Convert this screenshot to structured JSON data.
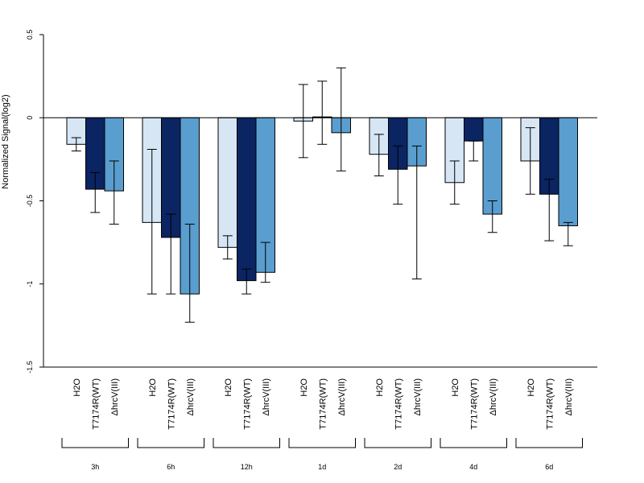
{
  "chart_data": {
    "type": "bar",
    "ylabel": "Normalized Signal(log2)",
    "ylim": [
      -1.5,
      0.5
    ],
    "yticks": [
      0.5,
      0,
      -0.5,
      -1,
      -1.5
    ],
    "ytick_labels": [
      "0.5",
      "0",
      "-0.5",
      "-1",
      "-1.5"
    ],
    "groups": [
      "3h",
      "6h",
      "12h",
      "1d",
      "2d",
      "4d",
      "6d"
    ],
    "series": [
      {
        "name": "H2O",
        "color": "#d6e6f5",
        "values": [
          -0.16,
          -0.63,
          -0.78,
          -0.02,
          -0.22,
          -0.39,
          -0.26
        ],
        "err_low": [
          -0.2,
          -1.06,
          -0.85,
          -0.24,
          -0.35,
          -0.52,
          -0.46
        ],
        "err_high": [
          -0.12,
          -0.19,
          -0.71,
          0.2,
          -0.1,
          -0.26,
          -0.06
        ]
      },
      {
        "name": "T7174R(WT)",
        "color": "#0b2462",
        "values": [
          -0.43,
          -0.72,
          -0.98,
          0.005,
          -0.31,
          -0.14,
          -0.46
        ],
        "err_low": [
          -0.57,
          -1.06,
          -1.06,
          -0.16,
          -0.52,
          -0.26,
          -0.74
        ],
        "err_high": [
          -0.33,
          -0.58,
          -0.91,
          0.22,
          -0.17,
          -0.14,
          -0.37
        ]
      },
      {
        "name": "ΔhrcV(III)",
        "color": "#5a9ecf",
        "values": [
          -0.44,
          -1.06,
          -0.93,
          -0.09,
          -0.29,
          -0.58,
          -0.65
        ],
        "err_low": [
          -0.64,
          -1.23,
          -0.99,
          -0.32,
          -0.97,
          -0.69,
          -0.77
        ],
        "err_high": [
          -0.26,
          -0.64,
          -0.75,
          0.3,
          -0.17,
          -0.5,
          -0.63
        ]
      }
    ],
    "grid": false,
    "legend": "none"
  }
}
